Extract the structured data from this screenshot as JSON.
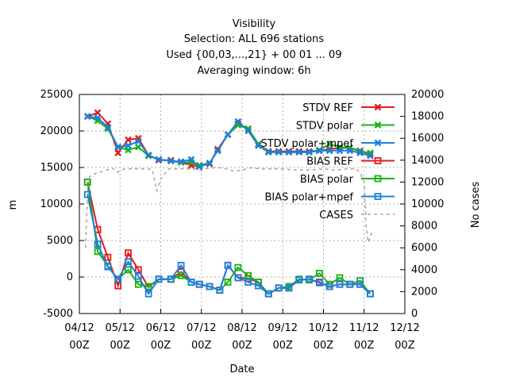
{
  "chart_data": {
    "type": "line",
    "title_lines": [
      "Visibility",
      "Selection: ALL    696 stations",
      "Used {00,03,...,21} + 00 01 ... 09",
      "Averaging window:  6h"
    ],
    "xlabel": "Date",
    "ylabel_left": "m",
    "ylabel_right": "No cases",
    "xlim": [
      0,
      8
    ],
    "ylim_left": [
      -5000,
      25000
    ],
    "ylim_right": [
      0,
      20000
    ],
    "x_ticks": [
      {
        "value": 0,
        "line1": "04/12",
        "line2": "00Z"
      },
      {
        "value": 1,
        "line1": "05/12",
        "line2": "00Z"
      },
      {
        "value": 2,
        "line1": "06/12",
        "line2": "00Z"
      },
      {
        "value": 3,
        "line1": "07/12",
        "line2": "00Z"
      },
      {
        "value": 4,
        "line1": "08/12",
        "line2": "00Z"
      },
      {
        "value": 5,
        "line1": "09/12",
        "line2": "00Z"
      },
      {
        "value": 6,
        "line1": "10/12",
        "line2": "00Z"
      },
      {
        "value": 7,
        "line1": "11/12",
        "line2": "00Z"
      },
      {
        "value": 8,
        "line1": "12/12",
        "line2": "00Z"
      }
    ],
    "y_ticks_left": [
      "-5000",
      "0",
      "5000",
      "10000",
      "15000",
      "20000",
      "25000"
    ],
    "y_ticks_right": [
      "0",
      "2000",
      "4000",
      "6000",
      "8000",
      "10000",
      "12000",
      "14000",
      "16000",
      "18000",
      "20000"
    ],
    "grid": true,
    "legend_position": "top-right",
    "series": [
      {
        "name": "STDV REF",
        "axis": "left",
        "color": "#e41a1c",
        "marker": "x",
        "points": [
          [
            0.2,
            22000
          ],
          [
            0.45,
            22500
          ],
          [
            0.7,
            21000
          ],
          [
            0.95,
            17000
          ],
          [
            1.2,
            18800
          ],
          [
            1.45,
            19000
          ],
          [
            1.7,
            16700
          ],
          [
            1.95,
            16000
          ],
          [
            2.25,
            16000
          ],
          [
            2.5,
            15700
          ],
          [
            2.75,
            15300
          ],
          [
            2.95,
            15200
          ],
          [
            3.2,
            15500
          ],
          [
            3.4,
            17500
          ],
          [
            3.65,
            19500
          ],
          [
            3.9,
            21000
          ],
          [
            4.15,
            20300
          ],
          [
            4.4,
            18200
          ],
          [
            4.65,
            17200
          ],
          [
            4.9,
            17200
          ],
          [
            5.15,
            17200
          ],
          [
            5.4,
            17200
          ],
          [
            5.65,
            17200
          ],
          [
            5.9,
            17300
          ],
          [
            6.15,
            17500
          ],
          [
            6.4,
            17700
          ],
          [
            6.65,
            17700
          ],
          [
            6.9,
            17300
          ],
          [
            7.15,
            16800
          ]
        ]
      },
      {
        "name": "STDV polar",
        "axis": "left",
        "color": "#1ab01a",
        "marker": "x",
        "points": [
          [
            0.2,
            22000
          ],
          [
            0.45,
            21400
          ],
          [
            0.7,
            20300
          ],
          [
            0.95,
            17800
          ],
          [
            1.2,
            17400
          ],
          [
            1.45,
            17800
          ],
          [
            1.7,
            16600
          ],
          [
            1.95,
            16100
          ],
          [
            2.25,
            15900
          ],
          [
            2.5,
            15700
          ],
          [
            2.75,
            15700
          ],
          [
            2.95,
            15300
          ],
          [
            3.2,
            15600
          ],
          [
            3.4,
            17300
          ],
          [
            3.65,
            19500
          ],
          [
            3.9,
            20800
          ],
          [
            4.15,
            20300
          ],
          [
            4.4,
            18200
          ],
          [
            4.65,
            17100
          ],
          [
            4.9,
            17100
          ],
          [
            5.15,
            17100
          ],
          [
            5.4,
            17100
          ],
          [
            5.65,
            17100
          ],
          [
            5.9,
            17400
          ],
          [
            6.15,
            18200
          ],
          [
            6.4,
            17800
          ],
          [
            6.65,
            17700
          ],
          [
            6.9,
            17200
          ],
          [
            7.15,
            17000
          ]
        ]
      },
      {
        "name": "STDV polar+mpef",
        "axis": "left",
        "color": "#1c7fe0",
        "marker": "x",
        "points": [
          [
            0.2,
            22000
          ],
          [
            0.45,
            21800
          ],
          [
            0.7,
            20500
          ],
          [
            0.95,
            17800
          ],
          [
            1.2,
            18000
          ],
          [
            1.45,
            18600
          ],
          [
            1.7,
            16700
          ],
          [
            1.95,
            16100
          ],
          [
            2.25,
            15900
          ],
          [
            2.5,
            15800
          ],
          [
            2.75,
            16100
          ],
          [
            2.95,
            15100
          ],
          [
            3.2,
            15600
          ],
          [
            3.4,
            17300
          ],
          [
            3.65,
            19500
          ],
          [
            3.9,
            21300
          ],
          [
            4.15,
            20000
          ],
          [
            4.4,
            18000
          ],
          [
            4.65,
            17100
          ],
          [
            4.9,
            17100
          ],
          [
            5.15,
            17100
          ],
          [
            5.4,
            17100
          ],
          [
            5.65,
            17100
          ],
          [
            5.9,
            17300
          ],
          [
            6.15,
            17300
          ],
          [
            6.4,
            17300
          ],
          [
            6.65,
            17300
          ],
          [
            6.9,
            17000
          ],
          [
            7.15,
            16600
          ]
        ]
      },
      {
        "name": "BIAS REF",
        "axis": "left",
        "color": "#e41a1c",
        "marker": "square",
        "points": [
          [
            0.2,
            13000
          ],
          [
            0.45,
            6500
          ],
          [
            0.7,
            2700
          ],
          [
            0.95,
            -1200
          ],
          [
            1.2,
            3300
          ],
          [
            1.45,
            1000
          ],
          [
            1.7,
            -1400
          ],
          [
            1.95,
            -300
          ],
          [
            2.25,
            -300
          ],
          [
            2.5,
            700
          ],
          [
            2.75,
            -700
          ],
          [
            2.95,
            -1000
          ],
          [
            3.2,
            -1300
          ],
          [
            3.45,
            -1800
          ],
          [
            3.65,
            1600
          ],
          [
            3.9,
            -100
          ],
          [
            4.15,
            -200
          ],
          [
            4.4,
            -700
          ],
          [
            4.65,
            -2300
          ],
          [
            4.9,
            -1500
          ],
          [
            5.15,
            -1500
          ],
          [
            5.4,
            -400
          ],
          [
            5.65,
            -300
          ],
          [
            5.9,
            -700
          ],
          [
            6.15,
            -1300
          ],
          [
            6.4,
            -1000
          ],
          [
            6.65,
            -1000
          ],
          [
            6.9,
            -1000
          ],
          [
            7.15,
            -2300
          ]
        ]
      },
      {
        "name": "BIAS polar",
        "axis": "left",
        "color": "#1ab01a",
        "marker": "square",
        "points": [
          [
            0.2,
            13000
          ],
          [
            0.45,
            3500
          ],
          [
            0.7,
            1500
          ],
          [
            0.95,
            -300
          ],
          [
            1.2,
            1000
          ],
          [
            1.45,
            -1000
          ],
          [
            1.7,
            -1300
          ],
          [
            1.95,
            -300
          ],
          [
            2.25,
            -300
          ],
          [
            2.5,
            200
          ],
          [
            2.75,
            -700
          ],
          [
            2.95,
            -1000
          ],
          [
            3.2,
            -1300
          ],
          [
            3.45,
            -1800
          ],
          [
            3.65,
            -700
          ],
          [
            3.9,
            1300
          ],
          [
            4.15,
            200
          ],
          [
            4.4,
            -700
          ],
          [
            4.65,
            -2300
          ],
          [
            4.9,
            -1500
          ],
          [
            5.15,
            -1300
          ],
          [
            5.4,
            -300
          ],
          [
            5.65,
            -400
          ],
          [
            5.9,
            500
          ],
          [
            6.15,
            -1000
          ],
          [
            6.4,
            -100
          ],
          [
            6.65,
            -1000
          ],
          [
            6.9,
            -500
          ],
          [
            7.15,
            -2300
          ]
        ]
      },
      {
        "name": "BIAS polar+mpef",
        "axis": "left",
        "color": "#1c7fe0",
        "marker": "square",
        "points": [
          [
            0.2,
            11300
          ],
          [
            0.45,
            4500
          ],
          [
            0.7,
            1400
          ],
          [
            0.95,
            -300
          ],
          [
            1.2,
            2100
          ],
          [
            1.45,
            100
          ],
          [
            1.7,
            -2300
          ],
          [
            1.95,
            -300
          ],
          [
            2.25,
            -300
          ],
          [
            2.5,
            1600
          ],
          [
            2.75,
            -700
          ],
          [
            2.95,
            -1000
          ],
          [
            3.2,
            -1300
          ],
          [
            3.45,
            -1800
          ],
          [
            3.65,
            1600
          ],
          [
            3.9,
            -100
          ],
          [
            4.15,
            -700
          ],
          [
            4.4,
            -1200
          ],
          [
            4.65,
            -2300
          ],
          [
            4.9,
            -1500
          ],
          [
            5.15,
            -1500
          ],
          [
            5.4,
            -400
          ],
          [
            5.65,
            -300
          ],
          [
            5.9,
            -800
          ],
          [
            6.15,
            -1300
          ],
          [
            6.4,
            -1000
          ],
          [
            6.65,
            -1000
          ],
          [
            6.9,
            -1000
          ],
          [
            7.15,
            -2300
          ]
        ]
      },
      {
        "name": "CASES",
        "axis": "right",
        "color": "#999999",
        "marker": "none",
        "dash": "4,4",
        "points": [
          [
            0.15,
            6000
          ],
          [
            0.2,
            11000
          ],
          [
            0.25,
            12500
          ],
          [
            0.4,
            12800
          ],
          [
            0.6,
            13000
          ],
          [
            0.8,
            13300
          ],
          [
            0.95,
            12900
          ],
          [
            1.1,
            13200
          ],
          [
            1.3,
            13200
          ],
          [
            1.5,
            13200
          ],
          [
            1.7,
            13200
          ],
          [
            1.8,
            13100
          ],
          [
            1.9,
            11200
          ],
          [
            2.0,
            12300
          ],
          [
            2.2,
            13200
          ],
          [
            2.5,
            13200
          ],
          [
            2.8,
            13200
          ],
          [
            3.0,
            13100
          ],
          [
            3.2,
            13300
          ],
          [
            3.5,
            13300
          ],
          [
            3.8,
            13000
          ],
          [
            4.0,
            13100
          ],
          [
            4.2,
            13300
          ],
          [
            4.5,
            13200
          ],
          [
            4.8,
            13200
          ],
          [
            5.0,
            13200
          ],
          [
            5.3,
            13100
          ],
          [
            5.6,
            13100
          ],
          [
            6.0,
            13200
          ],
          [
            6.3,
            13100
          ],
          [
            6.6,
            13200
          ],
          [
            6.8,
            13200
          ],
          [
            6.9,
            12900
          ],
          [
            7.0,
            12000
          ],
          [
            7.05,
            8000
          ],
          [
            7.1,
            6500
          ],
          [
            7.2,
            7500
          ]
        ]
      }
    ]
  }
}
